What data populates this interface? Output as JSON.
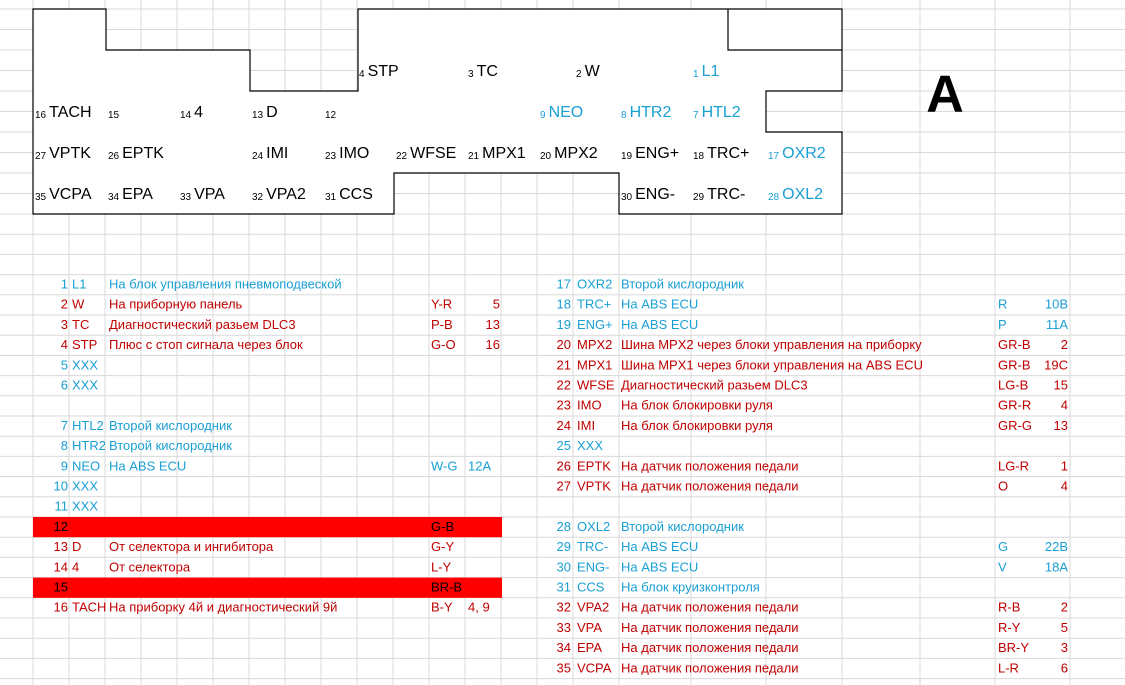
{
  "connector": {
    "letter": "A",
    "rows": [
      [
        {
          "num": 4,
          "label": "STP"
        },
        {
          "num": 3,
          "label": "TC"
        },
        {
          "num": 2,
          "label": "W"
        },
        {
          "num": 1,
          "label": "L1",
          "color": "#1a9fd4"
        }
      ],
      [
        {
          "num": 16,
          "label": "TACH"
        },
        {
          "num": 15
        },
        {
          "num": 14,
          "label": "4"
        },
        {
          "num": 13,
          "label": "D"
        },
        {
          "num": 12
        },
        {
          "num": 9,
          "label": "NEO",
          "color": "#1a9fd4"
        },
        {
          "num": 8,
          "label": "HTR2",
          "color": "#1a9fd4"
        },
        {
          "num": 7,
          "label": "HTL2",
          "color": "#1a9fd4"
        }
      ],
      [
        {
          "num": 27,
          "label": "VPTK"
        },
        {
          "num": 26,
          "label": "EPTK"
        },
        {
          "num": 24,
          "label": "IMI"
        },
        {
          "num": 23,
          "label": "IMO"
        },
        {
          "num": 22,
          "label": "WFSE"
        },
        {
          "num": 21,
          "label": "MPX1"
        },
        {
          "num": 20,
          "label": "MPX2"
        },
        {
          "num": 19,
          "label": "ENG+"
        },
        {
          "num": 18,
          "label": "TRC+"
        },
        {
          "num": 17,
          "label": "OXR2",
          "color": "#1a9fd4"
        }
      ],
      [
        {
          "num": 35,
          "label": "VCPA"
        },
        {
          "num": 34,
          "label": "EPA"
        },
        {
          "num": 33,
          "label": "VPA"
        },
        {
          "num": 32,
          "label": "VPA2"
        },
        {
          "num": 31,
          "label": "CCS"
        },
        {
          "num": 30,
          "label": "ENG-"
        },
        {
          "num": 29,
          "label": "TRC-"
        },
        {
          "num": 28,
          "label": "OXL2",
          "color": "#1a9fd4"
        }
      ]
    ]
  },
  "table": {
    "left": [
      [
        {
          "num": 1,
          "code": "L1",
          "desc": "На блок управления пневмоподвеской",
          "color": "#1a9fd4"
        },
        {
          "num": 2,
          "code": "W",
          "desc": "На приборную панель",
          "wire": "Y-R",
          "pin": 5,
          "color": "#c00000"
        },
        {
          "num": 3,
          "code": "TC",
          "desc": "Диагностический разьем DLC3",
          "wire": "P-B",
          "pin": 13,
          "color": "#c00000"
        },
        {
          "num": 4,
          "code": "STP",
          "desc": "Плюс с стоп сигнала через блок",
          "wire": "G-O",
          "pin": 16,
          "color": "#c00000"
        },
        {
          "num": 5,
          "code": "XXX",
          "color": "#1a9fd4"
        },
        {
          "num": 6,
          "code": "XXX",
          "color": "#1a9fd4"
        }
      ],
      [
        {
          "num": 7,
          "code": "HTL2",
          "desc": "Второй кислородник",
          "color": "#1a9fd4"
        },
        {
          "num": 8,
          "code": "HTR2",
          "desc": "Второй кислородник",
          "color": "#1a9fd4"
        },
        {
          "num": 9,
          "code": "NEO",
          "desc": "На ABS ECU",
          "wire": "W-G",
          "pin": "12A",
          "color": "#1a9fd4"
        },
        {
          "num": 10,
          "code": "XXX",
          "color": "#1a9fd4"
        },
        {
          "num": 11,
          "code": "XXX",
          "color": "#1a9fd4"
        },
        {
          "num": 12,
          "wire": "G-B",
          "color": "#000000",
          "fill": "#ff0000"
        },
        {
          "num": 13,
          "code": "D",
          "desc": "От селектора и ингибитора",
          "wire": "G-Y",
          "color": "#c00000"
        },
        {
          "num": 14,
          "code": "4",
          "desc": "От селектора",
          "wire": "L-Y",
          "color": "#c00000"
        },
        {
          "num": 15,
          "wire": "BR-B",
          "color": "#000000",
          "fill": "#ff0000"
        },
        {
          "num": 16,
          "code": "TACH",
          "desc": "На приборку 4й и диагностический 9й",
          "wire": "B-Y",
          "pin": "4, 9",
          "color": "#c00000"
        }
      ]
    ],
    "right": [
      [
        {
          "num": 17,
          "code": "OXR2",
          "desc": "Второй кислородник",
          "color": "#1a9fd4"
        },
        {
          "num": 18,
          "code": "TRC+",
          "desc": "На ABS ECU",
          "wire": "R",
          "pin": "10B",
          "color": "#1a9fd4"
        },
        {
          "num": 19,
          "code": "ENG+",
          "desc": "На ABS ECU",
          "wire": "P",
          "pin": "11A",
          "color": "#1a9fd4"
        },
        {
          "num": 20,
          "code": "MPX2",
          "desc": "Шина MPX2 через блоки управления на приборку",
          "wire": "GR-B",
          "pin": 2,
          "color": "#c00000"
        },
        {
          "num": 21,
          "code": "MPX1",
          "desc": "Шина MPX1 через блоки управления на ABS ECU",
          "wire": "GR-B",
          "pin": "19C",
          "color": "#c00000"
        },
        {
          "num": 22,
          "code": "WFSE",
          "desc": "Диагностический разьем DLC3",
          "wire": "LG-B",
          "pin": 15,
          "color": "#c00000"
        },
        {
          "num": 23,
          "code": "IMO",
          "desc": "На блок блокировки руля",
          "wire": "GR-R",
          "pin": 4,
          "color": "#c00000"
        },
        {
          "num": 24,
          "code": "IMI",
          "desc": "На блок блокировки руля",
          "wire": "GR-G",
          "pin": 13,
          "color": "#c00000"
        },
        {
          "num": 25,
          "code": "XXX",
          "color": "#1a9fd4"
        },
        {
          "num": 26,
          "code": "EPTK",
          "desc": "На датчик положения педали",
          "wire": "LG-R",
          "pin": 1,
          "color": "#c00000"
        },
        {
          "num": 27,
          "code": "VPTK",
          "desc": "На датчик положения педали",
          "wire": "O",
          "pin": 4,
          "color": "#c00000"
        }
      ],
      [
        {
          "num": 28,
          "code": "OXL2",
          "desc": "Второй кислородник",
          "color": "#1a9fd4"
        },
        {
          "num": 29,
          "code": "TRC-",
          "desc": "На ABS ECU",
          "wire": "G",
          "pin": "22B",
          "color": "#1a9fd4"
        },
        {
          "num": 30,
          "code": "ENG-",
          "desc": "На ABS ECU",
          "wire": "V",
          "pin": "18A",
          "color": "#1a9fd4"
        },
        {
          "num": 31,
          "code": "CCS",
          "desc": "На блок круизконтроля",
          "color": "#1a9fd4"
        },
        {
          "num": 32,
          "code": "VPA2",
          "desc": "На датчик положения педали",
          "wire": "R-B",
          "pin": 2,
          "color": "#c00000"
        },
        {
          "num": 33,
          "code": "VPA",
          "desc": "На датчик положения педали",
          "wire": "R-Y",
          "pin": 5,
          "color": "#c00000"
        },
        {
          "num": 34,
          "code": "EPA",
          "desc": "На датчик положения педали",
          "wire": "BR-Y",
          "pin": 3,
          "color": "#c00000"
        },
        {
          "num": 35,
          "code": "VCPA",
          "desc": "На датчик положения педали",
          "wire": "L-R",
          "pin": 6,
          "color": "#c00000"
        }
      ]
    ]
  }
}
